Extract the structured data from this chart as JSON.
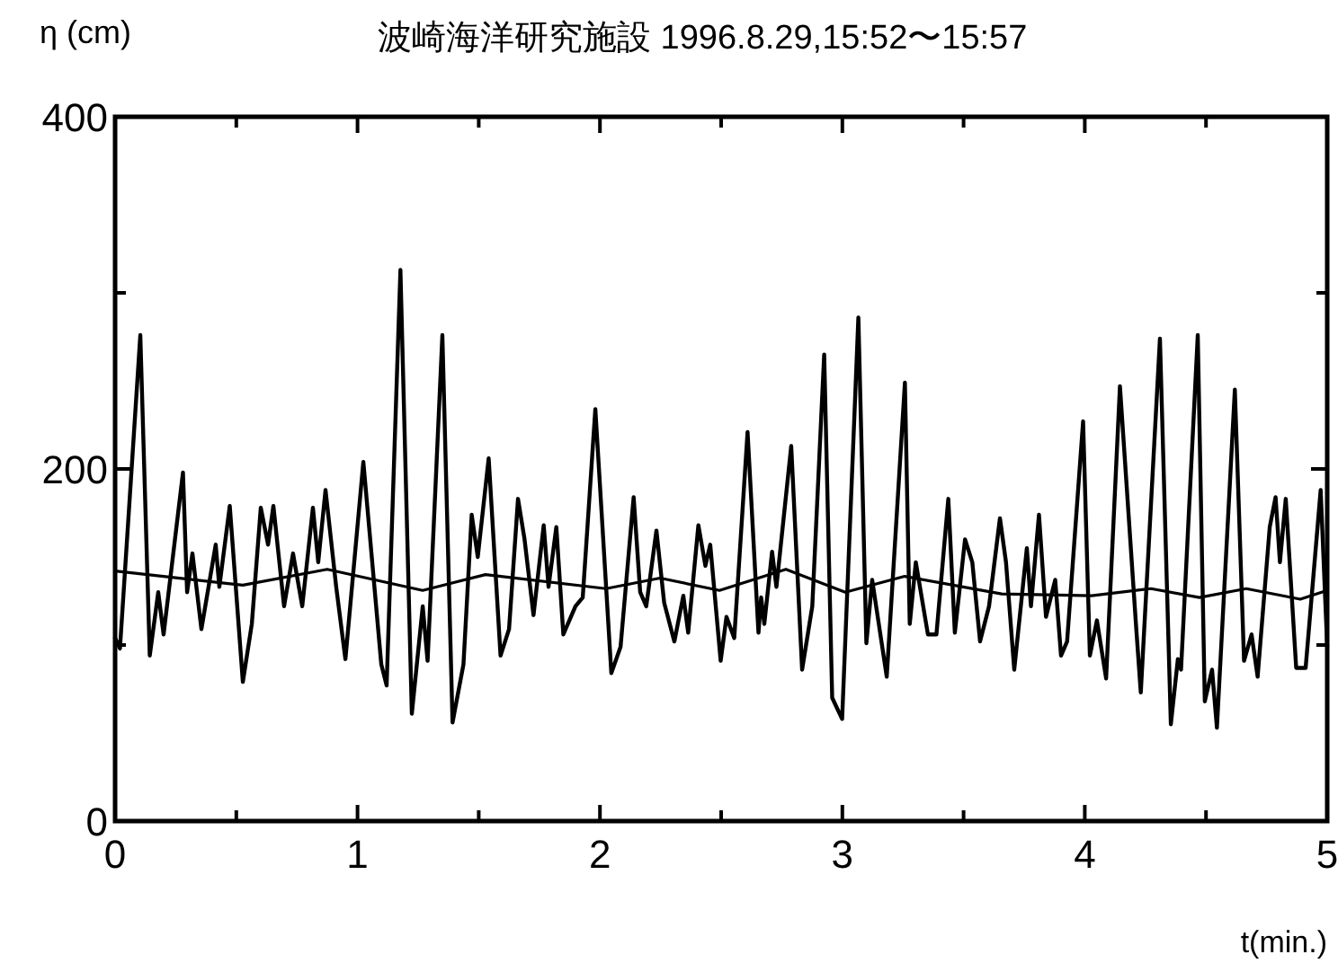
{
  "chart_data": {
    "type": "line",
    "title": "波崎海洋研究施設 1996.8.29,15:52〜15:57",
    "xlabel": "t(min.)",
    "ylabel": "η (cm)",
    "xlim": [
      0,
      5
    ],
    "ylim": [
      0,
      400
    ],
    "xticks": [
      0,
      {
        "value": 0.5,
        "label": null
      },
      1,
      {
        "value": 1.5,
        "label": null
      },
      2,
      {
        "value": 2.5,
        "label": null
      },
      3,
      {
        "value": 3.5,
        "label": null
      },
      4,
      {
        "value": 4.5,
        "label": null
      },
      5
    ],
    "yticks": [
      0,
      {
        "value": 100,
        "label": null
      },
      200,
      {
        "value": 300,
        "label": null
      },
      400
    ],
    "series": [
      {
        "color": "#000000",
        "x": [
          0,
          0.02,
          0.104,
          0.143,
          0.178,
          0.2,
          0.28,
          0.297,
          0.319,
          0.356,
          0.415,
          0.43,
          0.473,
          0.527,
          0.564,
          0.601,
          0.631,
          0.653,
          0.697,
          0.734,
          0.772,
          0.816,
          0.838,
          0.868,
          0.912,
          0.95,
          1.024,
          1.098,
          1.12,
          1.177,
          1.224,
          1.269,
          1.289,
          1.35,
          1.392,
          1.437,
          1.471,
          1.496,
          1.541,
          1.59,
          1.625,
          1.662,
          1.689,
          1.726,
          1.768,
          1.788,
          1.82,
          1.849,
          1.899,
          1.929,
          1.981,
          2.047,
          2.085,
          2.139,
          2.166,
          2.191,
          2.233,
          2.265,
          2.307,
          2.344,
          2.364,
          2.406,
          2.435,
          2.455,
          2.498,
          2.522,
          2.554,
          2.609,
          2.654,
          2.665,
          2.678,
          2.71,
          2.728,
          2.789,
          2.834,
          2.876,
          2.925,
          2.958,
          2.999,
          3.066,
          3.099,
          3.123,
          3.183,
          3.258,
          3.278,
          3.303,
          3.353,
          3.388,
          3.437,
          3.464,
          3.506,
          3.536,
          3.568,
          3.605,
          3.65,
          3.675,
          3.709,
          3.761,
          3.778,
          3.811,
          3.84,
          3.878,
          3.902,
          3.927,
          3.993,
          4.021,
          4.05,
          4.088,
          4.145,
          4.211,
          4.231,
          4.31,
          4.355,
          4.384,
          4.397,
          4.466,
          4.495,
          4.525,
          4.545,
          4.619,
          4.657,
          4.688,
          4.713,
          4.763,
          4.787,
          4.805,
          4.829,
          4.872,
          4.911,
          4.973,
          5
        ],
        "values": [
          104,
          98,
          276,
          94,
          130,
          106,
          198,
          130,
          152,
          109,
          157,
          133,
          179,
          79,
          112,
          178,
          157,
          179,
          122,
          152,
          122,
          178,
          147,
          188,
          133,
          92,
          204,
          89,
          77,
          313,
          61,
          122,
          91,
          276,
          56,
          89,
          174,
          150,
          206,
          94,
          109,
          183,
          160,
          117,
          168,
          133,
          167,
          106,
          122,
          127,
          234,
          84,
          99,
          184,
          130,
          122,
          165,
          124,
          102,
          128,
          107,
          168,
          145,
          157,
          91,
          116,
          104,
          221,
          107,
          127,
          112,
          153,
          133,
          213,
          86,
          122,
          265,
          70,
          58,
          286,
          101,
          137,
          82,
          249,
          112,
          147,
          106,
          106,
          183,
          107,
          160,
          147,
          102,
          122,
          172,
          147,
          86,
          155,
          122,
          174,
          116,
          137,
          94,
          102,
          227,
          94,
          114,
          81,
          247,
          112,
          73,
          274,
          55,
          92,
          86,
          276,
          68,
          86,
          53,
          245,
          91,
          106,
          82,
          167,
          184,
          147,
          183,
          87,
          87,
          188,
          99
        ]
      },
      {
        "color": "#000000",
        "x": [
          0,
          0.527,
          0.875,
          1.269,
          1.528,
          2.025,
          2.248,
          2.493,
          2.767,
          3.012,
          3.257,
          3.657,
          4.028,
          4.273,
          4.473,
          4.666,
          4.889,
          5
        ],
        "values": [
          142,
          134,
          143,
          131,
          140,
          132,
          138,
          131,
          143,
          130,
          139,
          129,
          128,
          132,
          127,
          132,
          126,
          131
        ]
      }
    ]
  }
}
